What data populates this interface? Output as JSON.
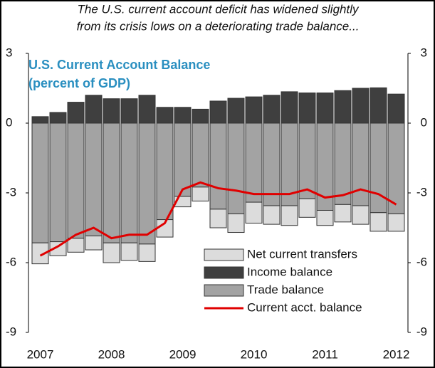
{
  "chart_data": {
    "type": "bar",
    "header": [
      "The U.S. current account deficit has widened slightly",
      "from its crisis lows on a deteriorating trade balance..."
    ],
    "title": [
      "U.S. Current Account Balance",
      "(percent of GDP)"
    ],
    "categories": [
      "2007",
      null,
      null,
      null,
      "2008",
      null,
      null,
      null,
      "2009",
      null,
      null,
      null,
      "2010",
      null,
      null,
      null,
      "2011",
      null,
      null,
      null,
      "2012"
    ],
    "series": [
      {
        "name": "Net current transfers",
        "type": "bar",
        "color": "#dcdcdc",
        "values": [
          -0.9,
          -0.6,
          -0.6,
          -0.6,
          -0.85,
          -0.75,
          -0.75,
          -0.75,
          -0.45,
          -0.6,
          -0.8,
          -0.8,
          -0.9,
          -0.8,
          -0.85,
          -0.8,
          -0.65,
          -0.75,
          -0.8,
          -0.8,
          -0.75
        ]
      },
      {
        "name": "Income balance",
        "type": "bar",
        "color": "#3f3f3f",
        "values": [
          0.28,
          0.46,
          0.9,
          1.2,
          1.05,
          1.05,
          1.2,
          0.68,
          0.68,
          0.6,
          0.95,
          1.07,
          1.13,
          1.2,
          1.35,
          1.3,
          1.3,
          1.4,
          1.5,
          1.52,
          1.25
        ]
      },
      {
        "name": "Trade balance",
        "type": "bar",
        "color": "#a3a3a3",
        "values": [
          -5.15,
          -5.1,
          -4.95,
          -4.85,
          -5.15,
          -5.15,
          -5.2,
          -4.15,
          -3.15,
          -2.75,
          -3.7,
          -3.9,
          -3.4,
          -3.55,
          -3.55,
          -3.25,
          -3.75,
          -3.5,
          -3.55,
          -3.85,
          -3.9
        ]
      },
      {
        "name": "Current acct. balance",
        "type": "line",
        "color": "#e00000",
        "values": [
          -5.7,
          -5.3,
          -4.8,
          -4.5,
          -4.95,
          -4.8,
          -4.8,
          -4.3,
          -2.85,
          -2.55,
          -2.8,
          -2.9,
          -3.05,
          -3.05,
          -3.05,
          -2.85,
          -3.2,
          -3.1,
          -2.85,
          -3.05,
          -3.5
        ]
      }
    ],
    "ylim": [
      -9,
      3
    ],
    "yticks": [
      3,
      0,
      -3,
      -6,
      -9
    ],
    "y2lim": [
      -9,
      3
    ],
    "y2ticks": [
      3,
      0,
      -3,
      -6,
      -9
    ]
  }
}
